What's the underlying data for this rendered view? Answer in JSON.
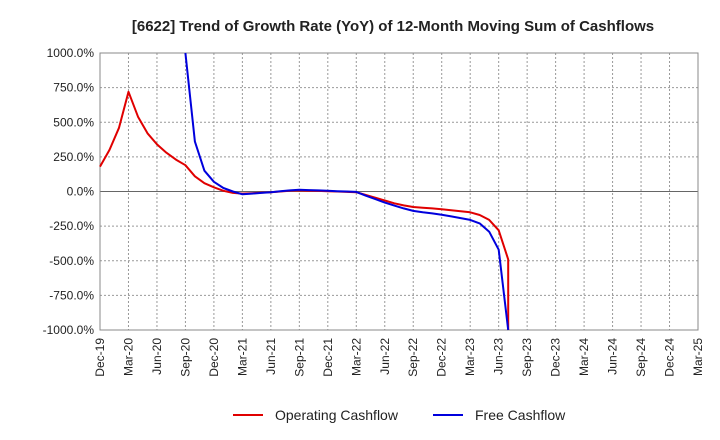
{
  "chart_data": {
    "type": "line",
    "title": "[6622]  Trend of Growth Rate (YoY) of 12-Month Moving Sum of Cashflows",
    "xlabel": "",
    "ylabel": "",
    "ylim": [
      -1000,
      1000
    ],
    "y_ticks": [
      1000,
      750,
      500,
      250,
      0,
      -250,
      -500,
      -750,
      -1000
    ],
    "y_tick_labels": [
      "1000.0%",
      "750.0%",
      "500.0%",
      "250.0%",
      "0.0%",
      "-250.0%",
      "-500.0%",
      "-750.0%",
      "-1000.0%"
    ],
    "x_tick_labels": [
      "Dec-19",
      "Mar-20",
      "Jun-20",
      "Sep-20",
      "Dec-20",
      "Mar-21",
      "Jun-21",
      "Sep-21",
      "Dec-21",
      "Mar-22",
      "Jun-22",
      "Sep-22",
      "Dec-22",
      "Mar-23",
      "Jun-23",
      "Sep-23",
      "Dec-23",
      "Mar-24",
      "Jun-24",
      "Sep-24",
      "Dec-24",
      "Mar-25"
    ],
    "x_unit": "month",
    "grid": true,
    "legend_position": "bottom",
    "series": [
      {
        "name": "Operating Cashflow",
        "color": "#e00000",
        "points": [
          [
            "Dec-19",
            180
          ],
          [
            "Jan-20",
            300
          ],
          [
            "Feb-20",
            460
          ],
          [
            "Mar-20",
            720
          ],
          [
            "Apr-20",
            540
          ],
          [
            "May-20",
            420
          ],
          [
            "Jun-20",
            340
          ],
          [
            "Jul-20",
            280
          ],
          [
            "Aug-20",
            230
          ],
          [
            "Sep-20",
            190
          ],
          [
            "Oct-20",
            110
          ],
          [
            "Nov-20",
            60
          ],
          [
            "Dec-20",
            30
          ],
          [
            "Jan-21",
            5
          ],
          [
            "Feb-21",
            -10
          ],
          [
            "Mar-21",
            -15
          ],
          [
            "Apr-21",
            -12
          ],
          [
            "May-21",
            -8
          ],
          [
            "Jun-21",
            -5
          ],
          [
            "Jul-21",
            0
          ],
          [
            "Aug-21",
            5
          ],
          [
            "Sep-21",
            8
          ],
          [
            "Oct-21",
            6
          ],
          [
            "Nov-21",
            4
          ],
          [
            "Dec-21",
            2
          ],
          [
            "Jan-22",
            0
          ],
          [
            "Feb-22",
            -3
          ],
          [
            "Mar-22",
            -5
          ],
          [
            "Apr-22",
            -25
          ],
          [
            "May-22",
            -45
          ],
          [
            "Jun-22",
            -65
          ],
          [
            "Jul-22",
            -85
          ],
          [
            "Aug-22",
            -100
          ],
          [
            "Sep-22",
            -112
          ],
          [
            "Oct-22",
            -118
          ],
          [
            "Nov-22",
            -122
          ],
          [
            "Dec-22",
            -128
          ],
          [
            "Jan-23",
            -135
          ],
          [
            "Feb-23",
            -142
          ],
          [
            "Mar-23",
            -150
          ],
          [
            "Apr-23",
            -170
          ],
          [
            "May-23",
            -205
          ],
          [
            "Jun-23",
            -280
          ],
          [
            "Jul-23",
            -490
          ],
          [
            "Jul-23",
            -1000
          ]
        ]
      },
      {
        "name": "Free Cashflow",
        "color": "#0000dd",
        "points": [
          [
            "Sep-20",
            1000
          ],
          [
            "Oct-20",
            360
          ],
          [
            "Nov-20",
            150
          ],
          [
            "Dec-20",
            70
          ],
          [
            "Jan-21",
            25
          ],
          [
            "Feb-21",
            0
          ],
          [
            "Mar-21",
            -20
          ],
          [
            "Apr-21",
            -15
          ],
          [
            "May-21",
            -10
          ],
          [
            "Jun-21",
            -5
          ],
          [
            "Jul-21",
            2
          ],
          [
            "Aug-21",
            8
          ],
          [
            "Sep-21",
            12
          ],
          [
            "Oct-21",
            10
          ],
          [
            "Nov-21",
            8
          ],
          [
            "Dec-21",
            5
          ],
          [
            "Jan-22",
            2
          ],
          [
            "Feb-22",
            0
          ],
          [
            "Mar-22",
            -3
          ],
          [
            "Apr-22",
            -30
          ],
          [
            "May-22",
            -55
          ],
          [
            "Jun-22",
            -80
          ],
          [
            "Jul-22",
            -102
          ],
          [
            "Aug-22",
            -122
          ],
          [
            "Sep-22",
            -140
          ],
          [
            "Oct-22",
            -150
          ],
          [
            "Nov-22",
            -158
          ],
          [
            "Dec-22",
            -168
          ],
          [
            "Jan-23",
            -180
          ],
          [
            "Feb-23",
            -192
          ],
          [
            "Mar-23",
            -205
          ],
          [
            "Apr-23",
            -230
          ],
          [
            "May-23",
            -290
          ],
          [
            "Jun-23",
            -420
          ],
          [
            "Jul-23",
            -1000
          ]
        ]
      }
    ]
  }
}
